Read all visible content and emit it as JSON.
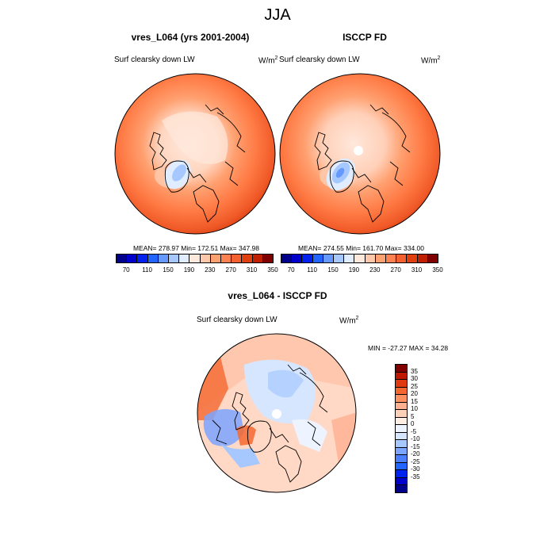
{
  "main_title": "JJA",
  "panels": [
    {
      "title": "vres_L064 (yrs 2001-2004)",
      "left_label": "Surf clearsky down LW",
      "units": "W/m",
      "units_sup": "2",
      "stats": "MEAN= 278.97  Min= 172.51  Max= 347.98"
    },
    {
      "title": "ISCCP FD",
      "left_label": "Surf clearsky down LW",
      "units": "W/m",
      "units_sup": "2",
      "stats": "MEAN= 274.55  Min= 161.70  Max= 334.00"
    },
    {
      "title": "vres_L064 - ISCCP FD",
      "left_label": "Surf clearsky down LW",
      "units": "W/m",
      "units_sup": "2",
      "stats": "MIN = -27.27 MAX =  34.28"
    }
  ],
  "colors": {
    "abs_scale": [
      "#00008b",
      "#0000cd",
      "#0022ee",
      "#2266ff",
      "#6699ff",
      "#a6c8ff",
      "#e0ecff",
      "#ffe8dc",
      "#ffc8aa",
      "#ffa070",
      "#ff8050",
      "#f46030",
      "#e04010",
      "#c02000",
      "#800000"
    ],
    "diff_scale": [
      "#00008b",
      "#0000cd",
      "#0022ee",
      "#2266ff",
      "#4c7fff",
      "#7da4ff",
      "#a6c8ff",
      "#d6e6ff",
      "#eef4ff",
      "#ffeee4",
      "#ffd0b8",
      "#ffb090",
      "#ff9060",
      "#f46830",
      "#e03a10",
      "#c01800",
      "#800000"
    ]
  },
  "chart_data": [
    {
      "type": "heatmap",
      "title": "vres_L064 (yrs 2001-2004)",
      "variable": "Surf clearsky down LW",
      "units": "W/m2",
      "projection": "north polar stereographic",
      "stats": {
        "mean": 278.97,
        "min": 172.51,
        "max": 347.98
      },
      "colorbar": {
        "orientation": "horizontal",
        "levels": [
          70,
          90,
          110,
          130,
          150,
          170,
          190,
          210,
          230,
          250,
          270,
          290,
          310,
          330,
          350
        ],
        "tick_labels": [
          "70",
          "110",
          "150",
          "190",
          "230",
          "270",
          "310",
          "350"
        ]
      }
    },
    {
      "type": "heatmap",
      "title": "ISCCP FD",
      "variable": "Surf clearsky down LW",
      "units": "W/m2",
      "projection": "north polar stereographic",
      "stats": {
        "mean": 274.55,
        "min": 161.7,
        "max": 334.0
      },
      "colorbar": {
        "orientation": "horizontal",
        "levels": [
          70,
          90,
          110,
          130,
          150,
          170,
          190,
          210,
          230,
          250,
          270,
          290,
          310,
          330,
          350
        ],
        "tick_labels": [
          "70",
          "110",
          "150",
          "190",
          "230",
          "270",
          "310",
          "350"
        ]
      }
    },
    {
      "type": "heatmap",
      "title": "vres_L064 - ISCCP FD",
      "variable": "Surf clearsky down LW",
      "units": "W/m2",
      "projection": "north polar stereographic",
      "stats": {
        "min": -27.27,
        "max": 34.28
      },
      "colorbar": {
        "orientation": "vertical",
        "levels": [
          -35,
          -30,
          -25,
          -20,
          -15,
          -10,
          -5,
          0,
          5,
          10,
          15,
          20,
          25,
          30,
          35
        ],
        "tick_labels": [
          "35",
          "30",
          "25",
          "20",
          "15",
          "10",
          "5",
          "0",
          "-5",
          "-10",
          "-15",
          "-20",
          "-25",
          "-30",
          "-35"
        ]
      }
    }
  ]
}
